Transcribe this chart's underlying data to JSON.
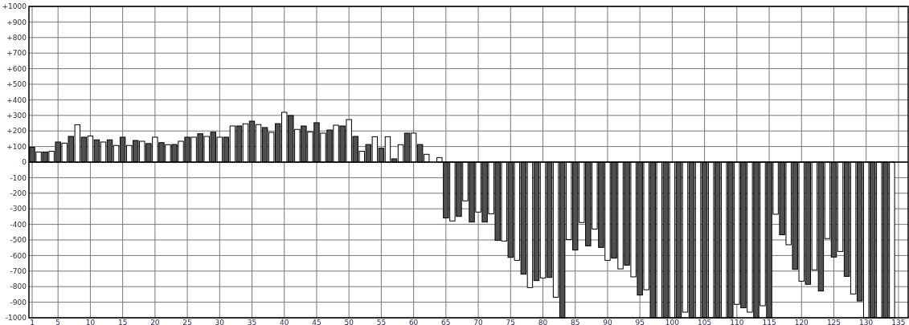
{
  "chart_data": {
    "type": "bar",
    "xlim": [
      0.5,
      136.5
    ],
    "xticks": [
      1,
      5,
      10,
      15,
      20,
      25,
      30,
      35,
      40,
      45,
      50,
      55,
      60,
      65,
      70,
      75,
      80,
      85,
      90,
      95,
      100,
      105,
      110,
      115,
      120,
      125,
      130,
      135
    ],
    "ylim": [
      -1000,
      1000
    ],
    "yticks": [
      -1000,
      -900,
      -800,
      -700,
      -600,
      -500,
      -400,
      -300,
      -200,
      -100,
      0,
      {
        "value": 100,
        "label": "+100"
      },
      {
        "value": 200,
        "label": "+200"
      },
      {
        "value": 300,
        "label": "+300"
      },
      {
        "value": 400,
        "label": "+400"
      },
      {
        "value": 500,
        "label": "+500"
      },
      {
        "value": 600,
        "label": "+600"
      },
      {
        "value": 700,
        "label": "+700"
      },
      {
        "value": 800,
        "label": "+800"
      },
      {
        "value": 900,
        "label": "+900"
      },
      {
        "value": 1000,
        "label": "+1000"
      }
    ],
    "grid": true,
    "x": [
      1,
      2,
      3,
      4,
      5,
      6,
      7,
      8,
      9,
      10,
      11,
      12,
      13,
      14,
      15,
      16,
      17,
      18,
      19,
      20,
      21,
      22,
      23,
      24,
      25,
      26,
      27,
      28,
      29,
      30,
      31,
      32,
      33,
      34,
      35,
      36,
      37,
      38,
      39,
      40,
      41,
      42,
      43,
      44,
      45,
      46,
      47,
      48,
      49,
      50,
      51,
      52,
      53,
      54,
      55,
      56,
      57,
      58,
      59,
      60,
      61,
      62,
      63,
      64,
      65,
      66,
      67,
      68,
      69,
      70,
      71,
      72,
      73,
      74,
      75,
      76,
      77,
      78,
      79,
      80,
      81,
      82,
      83,
      84,
      85,
      86,
      87,
      88,
      89,
      90,
      91,
      92,
      93,
      94,
      95,
      96,
      97,
      98,
      99,
      100,
      101,
      102,
      103,
      104,
      105,
      106,
      107,
      108,
      109,
      110,
      111,
      112,
      113,
      114,
      115,
      116,
      117,
      118,
      119,
      120,
      121,
      122,
      123,
      124,
      125,
      126,
      127,
      128,
      129,
      130,
      131,
      132,
      133,
      134
    ],
    "values": [
      95,
      65,
      65,
      70,
      129,
      122,
      165,
      240,
      160,
      168,
      143,
      129,
      143,
      107,
      160,
      107,
      139,
      134,
      119,
      160,
      125,
      112,
      113,
      134,
      160,
      160,
      182,
      165,
      192,
      160,
      160,
      232,
      232,
      246,
      263,
      241,
      222,
      191,
      247,
      320,
      299,
      210,
      232,
      194,
      253,
      186,
      206,
      237,
      232,
      273,
      165,
      70,
      113,
      163,
      89,
      163,
      21,
      112,
      186,
      186,
      113,
      50,
      null,
      29,
      -359,
      -378,
      -349,
      -249,
      -385,
      -321,
      -385,
      -332,
      -503,
      -507,
      -612,
      -631,
      -720,
      -806,
      -761,
      -744,
      -741,
      -868,
      -1000,
      -497,
      -565,
      -388,
      -538,
      -430,
      -548,
      -631,
      -617,
      -686,
      -662,
      -737,
      -854,
      -820,
      -1000,
      -1000,
      -1000,
      -1000,
      -1000,
      -964,
      -1000,
      -1000,
      -1000,
      -1000,
      -1000,
      -1000,
      -1000,
      -914,
      -936,
      -964,
      -1000,
      -923,
      -1000,
      -335,
      -467,
      -531,
      -689,
      -765,
      -785,
      -692,
      -828,
      -491,
      -610,
      -574,
      -734,
      -847,
      -892,
      -1000,
      -1000,
      -1000,
      -1000,
      -1000
    ],
    "colors": [
      "#505050",
      "#ffffff",
      "#505050",
      "#ffffff",
      "#505050",
      "#ffffff",
      "#505050",
      "#ffffff",
      "#505050",
      "#ffffff",
      "#505050",
      "#ffffff",
      "#505050",
      "#ffffff",
      "#505050",
      "#ffffff",
      "#505050",
      "#ffffff",
      "#505050",
      "#ffffff",
      "#505050",
      "#ffffff",
      "#505050",
      "#ffffff",
      "#505050",
      "#ffffff",
      "#505050",
      "#ffffff",
      "#505050",
      "#ffffff",
      "#505050",
      "#ffffff",
      "#505050",
      "#ffffff",
      "#505050",
      "#ffffff",
      "#505050",
      "#ffffff",
      "#505050",
      "#ffffff",
      "#505050",
      "#ffffff",
      "#505050",
      "#ffffff",
      "#505050",
      "#ffffff",
      "#505050",
      "#ffffff",
      "#505050",
      "#ffffff",
      "#505050",
      "#ffffff",
      "#505050",
      "#ffffff",
      "#505050",
      "#ffffff",
      "#505050",
      "#ffffff",
      "#505050",
      "#ffffff",
      "#505050",
      "#ffffff",
      "#505050",
      "#ffffff",
      "#505050",
      "#ffffff",
      "#505050",
      "#ffffff",
      "#505050",
      "#ffffff",
      "#505050",
      "#ffffff",
      "#505050",
      "#ffffff",
      "#505050",
      "#ffffff",
      "#505050",
      "#ffffff",
      "#505050",
      "#ffffff",
      "#505050",
      "#ffffff",
      "#505050",
      "#ffffff",
      "#505050",
      "#ffffff",
      "#505050",
      "#ffffff",
      "#505050",
      "#ffffff",
      "#505050",
      "#ffffff",
      "#505050",
      "#ffffff",
      "#505050",
      "#ffffff",
      "#505050",
      "#ffffff",
      "#505050",
      "#ffffff",
      "#505050",
      "#ffffff",
      "#505050",
      "#ffffff",
      "#505050",
      "#ffffff",
      "#505050",
      "#ffffff",
      "#505050",
      "#ffffff",
      "#505050",
      "#ffffff",
      "#505050",
      "#ffffff",
      "#505050",
      "#ffffff",
      "#505050",
      "#ffffff",
      "#505050",
      "#ffffff",
      "#505050",
      "#ffffff",
      "#505050",
      "#ffffff",
      "#505050",
      "#ffffff",
      "#505050",
      "#ffffff",
      "#505050",
      "#ffffff",
      "#505050",
      "#ffffff",
      "#505050",
      "#ffffff"
    ]
  }
}
